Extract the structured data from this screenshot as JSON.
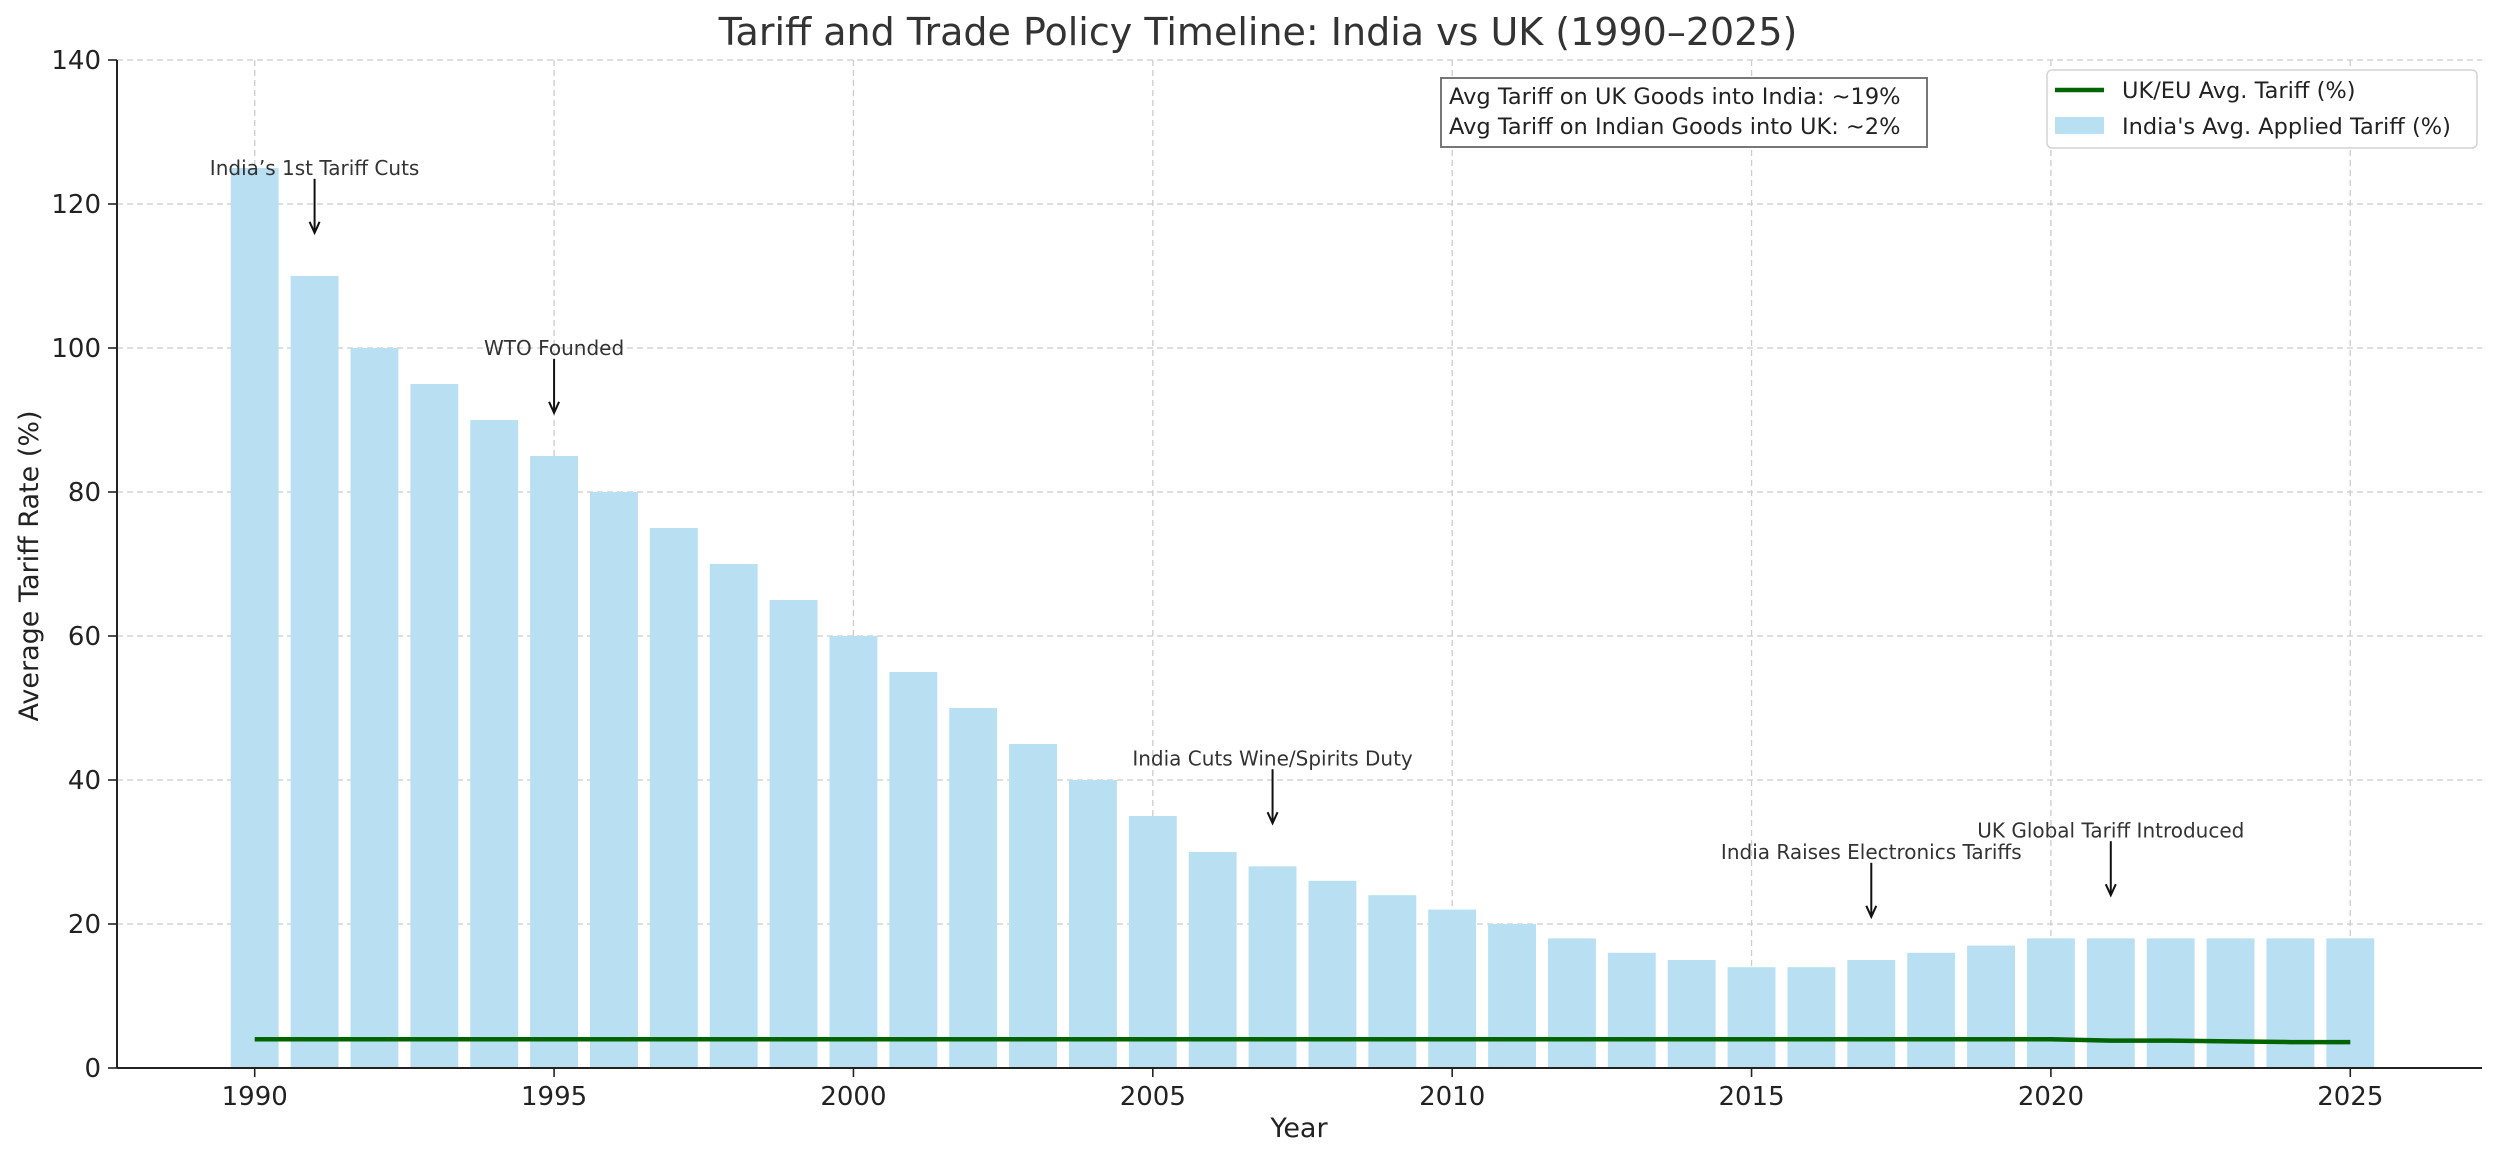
{
  "chart_data": {
    "type": "bar",
    "title": "Tariff and Trade Policy Timeline: India vs UK (1990–2025)",
    "xlabel": "Year",
    "ylabel": "Average Tariff Rate (%)",
    "ylim": [
      0,
      140
    ],
    "xlim": [
      1987.7,
      2027.2
    ],
    "yticks": [
      0,
      20,
      40,
      60,
      80,
      100,
      120,
      140
    ],
    "xticks": [
      1990,
      1995,
      2000,
      2005,
      2010,
      2015,
      2020,
      2025
    ],
    "grid": true,
    "legend_position": "top-right",
    "bar_color": "#b8e0f2",
    "line_color": "#006400",
    "x": [
      1990,
      1991,
      1992,
      1993,
      1994,
      1995,
      1996,
      1997,
      1998,
      1999,
      2000,
      2001,
      2002,
      2003,
      2004,
      2005,
      2006,
      2007,
      2008,
      2009,
      2010,
      2011,
      2012,
      2013,
      2014,
      2015,
      2016,
      2017,
      2018,
      2019,
      2020,
      2021,
      2022,
      2023,
      2024,
      2025
    ],
    "series": [
      {
        "name": "India's Avg. Applied Tariff (%)",
        "kind": "bar",
        "values": [
          125,
          110,
          100,
          95,
          90,
          85,
          80,
          75,
          70,
          65,
          60,
          55,
          50,
          45,
          40,
          35,
          30,
          28,
          26,
          24,
          22,
          20,
          18,
          16,
          15,
          14,
          14,
          15,
          16,
          17,
          18,
          18,
          18,
          18,
          18,
          18
        ]
      },
      {
        "name": "UK/EU Avg. Tariff (%)",
        "kind": "line",
        "values": [
          4,
          4,
          4,
          4,
          4,
          4,
          4,
          4,
          4,
          4,
          4,
          4,
          4,
          4,
          4,
          4,
          4,
          4,
          4,
          4,
          4,
          4,
          4,
          4,
          4,
          4,
          4,
          4,
          4,
          4,
          4,
          3.8,
          3.8,
          3.7,
          3.6,
          3.6
        ]
      }
    ],
    "annotations": [
      {
        "text": "India’s 1st Tariff Cuts",
        "x": 1991,
        "text_y": 125,
        "arrow_from": 123.5,
        "arrow_to": 116
      },
      {
        "text": "WTO Founded",
        "x": 1995,
        "text_y": 100,
        "arrow_from": 98.5,
        "arrow_to": 91
      },
      {
        "text": "India Cuts Wine/Spirits Duty",
        "x": 2007,
        "text_y": 43,
        "arrow_from": 41.5,
        "arrow_to": 34
      },
      {
        "text": "India Raises Electronics Tariffs",
        "x": 2017,
        "text_y": 30,
        "arrow_from": 28.5,
        "arrow_to": 21
      },
      {
        "text": "UK Global Tariff Introduced",
        "x": 2021,
        "text_y": 33,
        "arrow_from": 31.5,
        "arrow_to": 24
      }
    ],
    "info_box": [
      "Avg Tariff on UK Goods into India: ~19%",
      "Avg Tariff on Indian Goods into UK: ~2%"
    ]
  }
}
